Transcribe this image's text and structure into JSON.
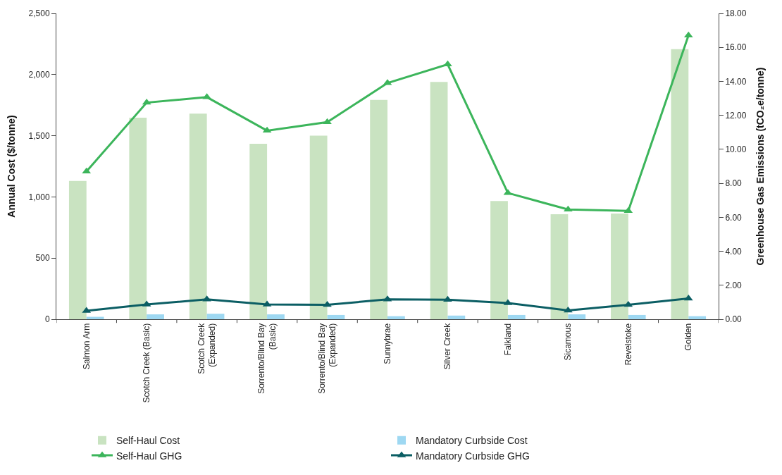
{
  "chart_data": {
    "type": "bar",
    "categories": [
      "Salmon Arm",
      "Scotch Creek (Basic)",
      "Scotch Creek (Expanded)",
      "Sorrento/Blind Bay (Basic)",
      "Sorrento/Blind Bay (Expanded)",
      "Sunnybrae",
      "Silver Creek",
      "Falkland",
      "Sicamous",
      "Revelstoke",
      "Golden"
    ],
    "ylabel": "Annual Cost ($/tonne)",
    "y2label": "Greenhouse Gas Emissions (tCO₂e/tonne)",
    "ylim": [
      0,
      2500
    ],
    "yticks": [
      {
        "value": 0,
        "label": "0"
      },
      {
        "value": 500,
        "label": "500"
      },
      {
        "value": 1000,
        "label": "1,000"
      },
      {
        "value": 1500,
        "label": "1,500"
      },
      {
        "value": 2000,
        "label": "2,000"
      },
      {
        "value": 2500,
        "label": "2,500"
      }
    ],
    "y2lim": [
      0,
      18
    ],
    "y2ticks": [
      {
        "value": 0,
        "label": "0.00"
      },
      {
        "value": 2,
        "label": "2.00"
      },
      {
        "value": 4,
        "label": "4.00"
      },
      {
        "value": 6,
        "label": "6.00"
      },
      {
        "value": 8,
        "label": "8.00"
      },
      {
        "value": 10,
        "label": "10.00"
      },
      {
        "value": 12,
        "label": "12.00"
      },
      {
        "value": 14,
        "label": "14.00"
      },
      {
        "value": 16,
        "label": "16.00"
      },
      {
        "value": 18,
        "label": "18.00"
      }
    ],
    "legend": "bottom",
    "marker": "triangle",
    "series": [
      {
        "name": "Self-Haul Cost",
        "color": "#c9e3c1",
        "values": [
          1130,
          1647,
          1680,
          1435,
          1500,
          1793,
          1940,
          967,
          859,
          864,
          2207
        ]
      },
      {
        "name": "Mandatory Curbside Cost",
        "color": "#9ed8f2",
        "values": [
          20,
          40,
          45,
          40,
          35,
          25,
          30,
          35,
          40,
          35,
          25
        ]
      },
      {
        "name": "Self-Haul GHG",
        "type": "line",
        "axis": "y2",
        "color": "#3cb55b",
        "values": [
          8.7,
          12.75,
          13.07,
          11.1,
          11.6,
          13.9,
          15.0,
          7.43,
          6.46,
          6.38,
          16.7
        ]
      },
      {
        "name": "Mandatory Curbside GHG",
        "type": "line",
        "axis": "y2",
        "color": "#0b5e64",
        "values": [
          0.5,
          0.87,
          1.17,
          0.87,
          0.85,
          1.17,
          1.15,
          0.95,
          0.52,
          0.85,
          1.22
        ]
      }
    ]
  }
}
